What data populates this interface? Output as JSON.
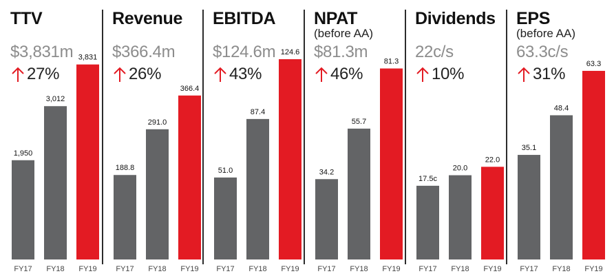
{
  "colors": {
    "previous_bar": "#636466",
    "current_bar": "#e31b23",
    "arrow": "#e31b23"
  },
  "chart_data": [
    {
      "type": "bar",
      "title": "TTV",
      "subtitle": "",
      "metric": "$3,831m",
      "growth": "27%",
      "categories": [
        "FY17",
        "FY18",
        "FY19"
      ],
      "values": [
        1950,
        3012,
        3831
      ],
      "value_labels": [
        "1,950",
        "3,012",
        "3,831"
      ],
      "ylim": [
        0,
        4800
      ]
    },
    {
      "type": "bar",
      "title": "Revenue",
      "subtitle": "",
      "metric": "$366.4m",
      "growth": "26%",
      "categories": [
        "FY17",
        "FY18",
        "FY19"
      ],
      "values": [
        188.8,
        291.0,
        366.4
      ],
      "value_labels": [
        "188.8",
        "291.0",
        "366.4"
      ],
      "ylim": [
        0,
        546
      ]
    },
    {
      "type": "bar",
      "title": "EBITDA",
      "subtitle": "",
      "metric": "$124.6m",
      "growth": "43%",
      "categories": [
        "FY17",
        "FY18",
        "FY19"
      ],
      "values": [
        51.0,
        87.4,
        124.6
      ],
      "value_labels": [
        "51.0",
        "87.4",
        "124.6"
      ],
      "ylim": [
        0,
        152
      ]
    },
    {
      "type": "bar",
      "title": "NPAT",
      "subtitle": "(before AA)",
      "metric": "$81.3m",
      "growth": "46%",
      "categories": [
        "FY17",
        "FY18",
        "FY19"
      ],
      "values": [
        34.2,
        55.7,
        81.3
      ],
      "value_labels": [
        "34.2",
        "55.7",
        "81.3"
      ],
      "ylim": [
        0,
        104
      ]
    },
    {
      "type": "bar",
      "title": "Dividends",
      "subtitle": "",
      "metric": "22c/s",
      "growth": "10%",
      "categories": [
        "FY17",
        "FY18",
        "FY19"
      ],
      "values": [
        17.5,
        20.0,
        22.0
      ],
      "value_labels": [
        "17.5c",
        "20.0",
        "22.0"
      ],
      "ylim": [
        0,
        58
      ]
    },
    {
      "type": "bar",
      "title": "EPS",
      "subtitle": "(before AA)",
      "metric": "63.3c/s",
      "growth": "31%",
      "categories": [
        "FY17",
        "FY18",
        "FY19"
      ],
      "values": [
        35.1,
        48.4,
        63.3
      ],
      "value_labels": [
        "35.1",
        "48.4",
        "63.3"
      ],
      "ylim": [
        0,
        82
      ]
    }
  ]
}
